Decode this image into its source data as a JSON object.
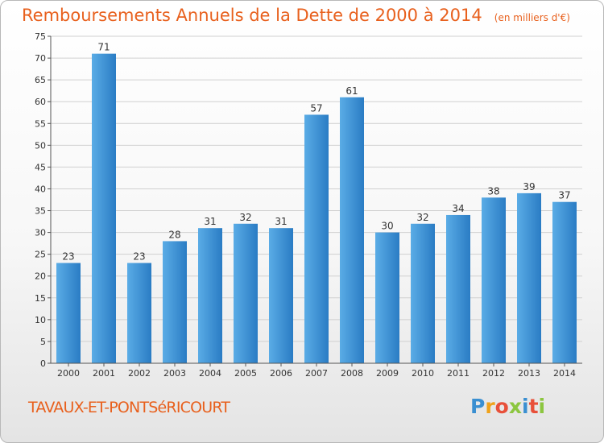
{
  "title": "Remboursements Annuels de la Dette de 2000 à 2014",
  "unit_note": "(en milliers d'€)",
  "commune": "TAVAUX-ET-PONTSéRICOURT",
  "logo": {
    "letters": [
      "P",
      "r",
      "o",
      "x",
      "i",
      "t",
      "i"
    ],
    "colors": [
      "#3a8fd1",
      "#f0a21a",
      "#e8503a",
      "#8cc63f",
      "#3a8fd1",
      "#e8503a",
      "#8cc63f"
    ]
  },
  "colors": {
    "title": "#e8601d",
    "bar_light": "#5aace6",
    "bar_dark": "#2a7cc4",
    "grid": "#d0d0d0"
  },
  "chart_data": {
    "type": "bar",
    "title": "Remboursements Annuels de la Dette de 2000 à 2014",
    "categories": [
      "2000",
      "2001",
      "2002",
      "2003",
      "2004",
      "2005",
      "2006",
      "2007",
      "2008",
      "2009",
      "2010",
      "2011",
      "2012",
      "2013",
      "2014"
    ],
    "values": [
      23,
      71,
      23,
      28,
      31,
      32,
      31,
      57,
      61,
      30,
      32,
      34,
      38,
      39,
      37
    ],
    "ylim": [
      0,
      75
    ],
    "yticks": [
      0,
      5,
      10,
      15,
      20,
      25,
      30,
      35,
      40,
      45,
      50,
      55,
      60,
      65,
      70,
      75
    ],
    "grid": true
  }
}
